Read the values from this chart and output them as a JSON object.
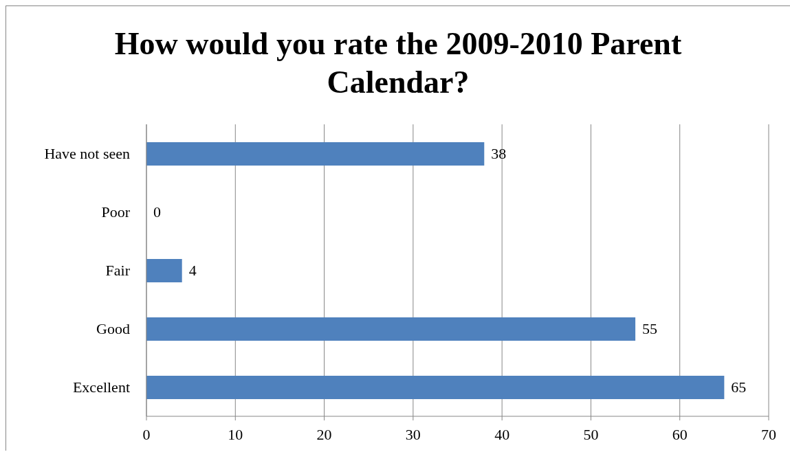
{
  "chart_data": {
    "type": "bar",
    "orientation": "horizontal",
    "title": "How would you rate the 2009-2010 Parent Calendar?",
    "categories": [
      "Have not seen",
      "Poor",
      "Fair",
      "Good",
      "Excellent"
    ],
    "values": [
      38,
      0,
      4,
      55,
      65
    ],
    "color": "#4f81bd",
    "xlim": [
      0,
      70
    ],
    "xticks": [
      0,
      10,
      20,
      30,
      40,
      50,
      60,
      70
    ],
    "grid": "x",
    "data_labels": true
  }
}
